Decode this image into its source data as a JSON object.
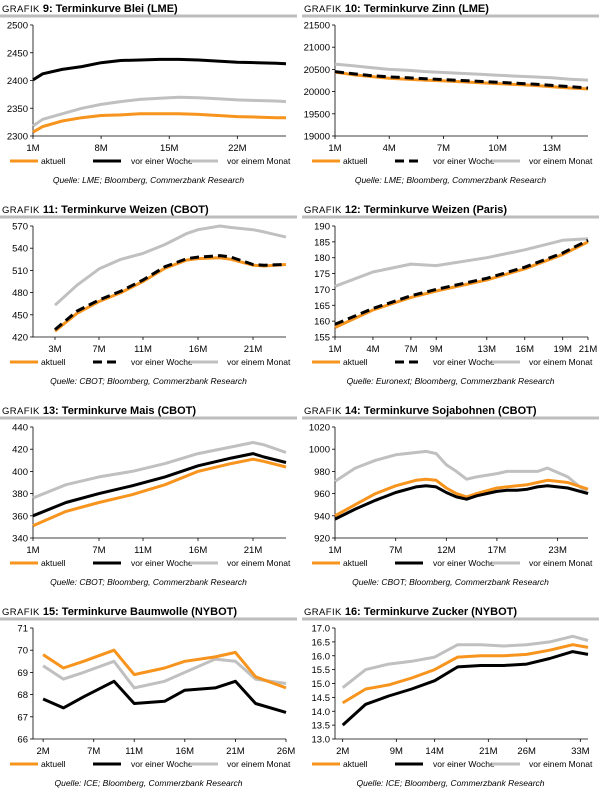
{
  "legend_labels": {
    "a": "aktuell",
    "w": "vor einer Woche",
    "m": "vor einem Monat"
  },
  "series_colors": {
    "a": "#F7941D",
    "w": "#000000",
    "m": "#C0C0C0"
  },
  "chart_data": [
    {
      "type": "line",
      "title_prefix": "Grafik",
      "title_num": "9:",
      "title_rest": " Terminkurve Blei (LME)",
      "source": "Quelle: LME; Bloomberg, Commerzbank Research",
      "ylim": [
        2300,
        2500
      ],
      "yticks": [
        2300,
        2350,
        2400,
        2450,
        2500
      ],
      "xmax": 27,
      "xticks": [
        {
          "x": 1,
          "label": "1M"
        },
        {
          "x": 8,
          "label": "8M"
        },
        {
          "x": 15,
          "label": "15M"
        },
        {
          "x": 22,
          "label": "22M"
        }
      ],
      "series": [
        {
          "key": "m",
          "x": [
            1,
            2,
            4,
            6,
            8,
            10,
            12,
            14,
            16,
            18,
            20,
            22,
            24,
            26,
            27
          ],
          "values": [
            2318,
            2330,
            2340,
            2350,
            2357,
            2362,
            2366,
            2368,
            2370,
            2369,
            2367,
            2365,
            2364,
            2363,
            2362
          ]
        },
        {
          "key": "a",
          "x": [
            1,
            2,
            4,
            6,
            8,
            10,
            12,
            14,
            16,
            18,
            20,
            22,
            24,
            26,
            27
          ],
          "values": [
            2307,
            2317,
            2327,
            2333,
            2337,
            2338,
            2340,
            2340,
            2340,
            2339,
            2337,
            2335,
            2334,
            2333,
            2333
          ]
        },
        {
          "key": "w",
          "x": [
            1,
            2,
            4,
            6,
            8,
            10,
            12,
            14,
            16,
            18,
            20,
            22,
            24,
            26,
            27
          ],
          "values": [
            2401,
            2412,
            2420,
            2425,
            2432,
            2436,
            2437,
            2438,
            2438,
            2437,
            2435,
            2433,
            2432,
            2431,
            2430
          ]
        }
      ]
    },
    {
      "type": "line",
      "title_prefix": "Grafik",
      "title_num": "10:",
      "title_rest": " Terminkurve Zinn (LME)",
      "source": "Quelle: LME; Bloomberg, Commerzbank Research",
      "ylim": [
        19000,
        21500
      ],
      "yticks": [
        19000,
        19500,
        20000,
        20500,
        21000,
        21500
      ],
      "xmax": 15,
      "xticks": [
        {
          "x": 1,
          "label": "1M"
        },
        {
          "x": 4,
          "label": "4M"
        },
        {
          "x": 7,
          "label": "7M"
        },
        {
          "x": 10,
          "label": "10M"
        },
        {
          "x": 13,
          "label": "13M"
        }
      ],
      "series": [
        {
          "key": "m",
          "x": [
            1,
            2,
            3,
            4,
            5,
            6,
            7,
            8,
            9,
            10,
            11,
            12,
            13,
            14,
            15
          ],
          "values": [
            20620,
            20580,
            20540,
            20500,
            20480,
            20450,
            20430,
            20410,
            20390,
            20370,
            20350,
            20330,
            20310,
            20280,
            20260
          ]
        },
        {
          "key": "a",
          "x": [
            1,
            2,
            3,
            4,
            5,
            6,
            7,
            8,
            9,
            10,
            11,
            12,
            13,
            14,
            15
          ],
          "values": [
            20440,
            20380,
            20340,
            20300,
            20280,
            20260,
            20240,
            20220,
            20200,
            20180,
            20160,
            20140,
            20110,
            20080,
            20060
          ]
        },
        {
          "key": "w",
          "x": [
            1,
            2,
            3,
            4,
            5,
            6,
            7,
            8,
            9,
            10,
            11,
            12,
            13,
            14,
            15
          ],
          "values": [
            20450,
            20400,
            20360,
            20330,
            20310,
            20290,
            20270,
            20250,
            20230,
            20210,
            20190,
            20170,
            20140,
            20110,
            20080
          ]
        }
      ]
    },
    {
      "type": "line",
      "title_prefix": "Grafik",
      "title_num": "11:",
      "title_rest": " Terminkurve Weizen (CBOT)",
      "source": "Quelle: CBOT; Bloomberg, Commerzbank Research",
      "ylim": [
        420,
        570
      ],
      "yticks": [
        420,
        450,
        480,
        510,
        540,
        570
      ],
      "xmax": 24,
      "xticks": [
        {
          "x": 3,
          "label": "3M"
        },
        {
          "x": 7,
          "label": "7M"
        },
        {
          "x": 11,
          "label": "11M"
        },
        {
          "x": 16,
          "label": "16M"
        },
        {
          "x": 21,
          "label": "21M"
        }
      ],
      "series": [
        {
          "key": "m",
          "x": [
            3,
            5,
            7,
            9,
            11,
            13,
            15,
            16,
            18,
            19,
            21,
            22,
            24
          ],
          "values": [
            463,
            490,
            512,
            525,
            533,
            545,
            560,
            565,
            570,
            568,
            565,
            562,
            555
          ]
        },
        {
          "key": "a",
          "x": [
            3,
            5,
            7,
            9,
            11,
            13,
            15,
            16,
            18,
            19,
            21,
            22,
            24
          ],
          "values": [
            428,
            452,
            468,
            480,
            495,
            513,
            524,
            526,
            527,
            525,
            517,
            516,
            518
          ]
        },
        {
          "key": "w",
          "x": [
            3,
            5,
            7,
            9,
            11,
            13,
            15,
            16,
            18,
            19,
            21,
            22,
            24
          ],
          "values": [
            430,
            455,
            470,
            482,
            497,
            515,
            526,
            528,
            530,
            528,
            518,
            517,
            518
          ]
        }
      ]
    },
    {
      "type": "line",
      "title_prefix": "Grafik",
      "title_num": "12:",
      "title_rest": " Terminkurve Weizen (Paris)",
      "source": "Quelle: Euronext; Bloomberg, Commerzbank Research",
      "ylim": [
        155,
        190
      ],
      "yticks": [
        155,
        160,
        165,
        170,
        175,
        180,
        185,
        190
      ],
      "xmax": 21,
      "xticks": [
        {
          "x": 1,
          "label": "1M"
        },
        {
          "x": 4,
          "label": "4M"
        },
        {
          "x": 7,
          "label": "7M"
        },
        {
          "x": 9,
          "label": "9M"
        },
        {
          "x": 13,
          "label": "13M"
        },
        {
          "x": 16,
          "label": "16M"
        },
        {
          "x": 19,
          "label": "19M"
        },
        {
          "x": 21,
          "label": "21M"
        }
      ],
      "series": [
        {
          "key": "m",
          "x": [
            1,
            4,
            7,
            9,
            13,
            16,
            19,
            21
          ],
          "values": [
            171,
            175.5,
            178,
            177.5,
            180,
            182.5,
            185.5,
            186
          ]
        },
        {
          "key": "a",
          "x": [
            1,
            4,
            7,
            9,
            13,
            16,
            19,
            21
          ],
          "values": [
            158,
            163.5,
            167.5,
            169.5,
            173,
            176.5,
            181,
            185
          ]
        },
        {
          "key": "w",
          "x": [
            1,
            4,
            7,
            9,
            13,
            16,
            19,
            21
          ],
          "values": [
            159,
            164,
            168,
            170,
            173.5,
            177,
            181.5,
            185.5
          ]
        }
      ]
    },
    {
      "type": "line",
      "title_prefix": "Grafik",
      "title_num": "13:",
      "title_rest": " Terminkurve Mais (CBOT)",
      "source": "Quelle: CBOT; Bloomberg, Commerzbank Research",
      "ylim": [
        340,
        440
      ],
      "yticks": [
        340,
        360,
        380,
        400,
        420,
        440
      ],
      "xmax": 24,
      "xticks": [
        {
          "x": 1,
          "label": "1M"
        },
        {
          "x": 7,
          "label": "7M"
        },
        {
          "x": 11,
          "label": "11M"
        },
        {
          "x": 16,
          "label": "16M"
        },
        {
          "x": 21,
          "label": "21M"
        }
      ],
      "series": [
        {
          "key": "m",
          "x": [
            1,
            4,
            7,
            10,
            13,
            16,
            19,
            21,
            22,
            24
          ],
          "values": [
            376,
            388,
            395,
            400,
            407,
            416,
            422,
            426,
            424,
            417
          ]
        },
        {
          "key": "w",
          "x": [
            1,
            4,
            7,
            10,
            13,
            16,
            19,
            21,
            22,
            24
          ],
          "values": [
            360,
            372,
            380,
            387,
            395,
            405,
            412,
            416,
            413,
            408
          ]
        },
        {
          "key": "a",
          "x": [
            1,
            4,
            7,
            10,
            13,
            16,
            19,
            21,
            22,
            24
          ],
          "values": [
            351,
            364,
            372,
            379,
            388,
            400,
            407,
            411,
            409,
            404
          ]
        }
      ]
    },
    {
      "type": "line",
      "title_prefix": "Grafik",
      "title_num": "14:",
      "title_rest": " Terminkurve Sojabohnen (CBOT)",
      "source": "Quelle: CBOT; Bloomberg, Commerzbank Research",
      "ylim": [
        920,
        1020
      ],
      "yticks": [
        920,
        940,
        960,
        980,
        1000,
        1020
      ],
      "xmax": 26,
      "xticks": [
        {
          "x": 1,
          "label": "1M"
        },
        {
          "x": 7,
          "label": "7M"
        },
        {
          "x": 12,
          "label": "12M"
        },
        {
          "x": 17,
          "label": "17M"
        },
        {
          "x": 23,
          "label": "23M"
        }
      ],
      "series": [
        {
          "key": "m",
          "x": [
            1,
            3,
            5,
            7,
            9,
            10,
            11,
            12,
            13,
            14,
            15,
            17,
            18,
            19,
            20,
            21,
            22,
            24,
            26
          ],
          "values": [
            971,
            983,
            990,
            995,
            997,
            998,
            996,
            986,
            980,
            973,
            975,
            978,
            980,
            980,
            980,
            980,
            983,
            975,
            960
          ]
        },
        {
          "key": "a",
          "x": [
            1,
            3,
            5,
            7,
            9,
            10,
            11,
            12,
            13,
            14,
            15,
            17,
            18,
            19,
            20,
            21,
            22,
            24,
            26
          ],
          "values": [
            940,
            950,
            960,
            967,
            972,
            973,
            972,
            965,
            960,
            957,
            960,
            965,
            966,
            967,
            968,
            970,
            972,
            970,
            964
          ]
        },
        {
          "key": "w",
          "x": [
            1,
            3,
            5,
            7,
            9,
            10,
            11,
            12,
            13,
            14,
            15,
            17,
            18,
            19,
            20,
            21,
            22,
            24,
            26
          ],
          "values": [
            937,
            946,
            954,
            961,
            966,
            967,
            966,
            961,
            957,
            955,
            958,
            962,
            963,
            963,
            964,
            966,
            967,
            965,
            960
          ]
        }
      ]
    },
    {
      "type": "line",
      "title_prefix": "Grafik",
      "title_num": "15:",
      "title_rest": " Terminkurve Baumwolle (NYBOT)",
      "source": "Quelle: ICE; Bloomberg, Commerzbank Research",
      "ylim": [
        66,
        71
      ],
      "yticks": [
        66,
        67,
        68,
        69,
        70,
        71
      ],
      "xmax": 26,
      "xticks": [
        {
          "x": 2,
          "label": "2M"
        },
        {
          "x": 7,
          "label": "7M"
        },
        {
          "x": 11,
          "label": "11M"
        },
        {
          "x": 16,
          "label": "16M"
        },
        {
          "x": 21,
          "label": "21M"
        },
        {
          "x": 26,
          "label": "26M"
        }
      ],
      "series": [
        {
          "key": "m",
          "x": [
            2,
            4,
            6,
            9,
            11,
            14,
            16,
            19,
            21,
            23,
            26
          ],
          "values": [
            69.3,
            68.7,
            69,
            69.5,
            68.3,
            68.6,
            69,
            69.6,
            69.5,
            68.7,
            68.5
          ]
        },
        {
          "key": "a",
          "x": [
            2,
            4,
            6,
            9,
            11,
            14,
            16,
            19,
            21,
            23,
            26
          ],
          "values": [
            69.8,
            69.2,
            69.5,
            70,
            68.9,
            69.2,
            69.5,
            69.7,
            69.9,
            68.8,
            68.3
          ]
        },
        {
          "key": "w",
          "x": [
            2,
            4,
            6,
            9,
            11,
            14,
            16,
            19,
            21,
            23,
            26
          ],
          "values": [
            67.8,
            67.4,
            67.9,
            68.6,
            67.6,
            67.7,
            68.2,
            68.3,
            68.6,
            67.6,
            67.2
          ]
        }
      ]
    },
    {
      "type": "line",
      "title_prefix": "Grafik",
      "title_num": "16:",
      "title_rest": " Terminkurve Zucker (NYBOT)",
      "source": "Quelle: ICE; Bloomberg, Commerzbank Research",
      "ylim": [
        13,
        17
      ],
      "yticks": [
        13,
        13.5,
        14,
        14.5,
        15,
        15.5,
        16,
        16.5,
        17
      ],
      "ytick_labels": [
        "13.0",
        "13.5",
        "14.0",
        "14.5",
        "15.0",
        "15.5",
        "16.0",
        "16.5",
        "17.0"
      ],
      "xmax": 34,
      "xticks": [
        {
          "x": 2,
          "label": "2M"
        },
        {
          "x": 9,
          "label": "9M"
        },
        {
          "x": 14,
          "label": "14M"
        },
        {
          "x": 21,
          "label": "21M"
        },
        {
          "x": 26,
          "label": "26M"
        },
        {
          "x": 33,
          "label": "33M"
        }
      ],
      "series": [
        {
          "key": "m",
          "x": [
            2,
            5,
            8,
            11,
            14,
            17,
            20,
            23,
            26,
            29,
            32,
            34
          ],
          "values": [
            14.85,
            15.5,
            15.7,
            15.8,
            15.95,
            16.4,
            16.4,
            16.35,
            16.4,
            16.5,
            16.7,
            16.55
          ]
        },
        {
          "key": "a",
          "x": [
            2,
            5,
            8,
            11,
            14,
            17,
            20,
            23,
            26,
            29,
            32,
            34
          ],
          "values": [
            14.3,
            14.8,
            14.95,
            15.2,
            15.5,
            15.95,
            16.0,
            16.0,
            16.05,
            16.2,
            16.4,
            16.3
          ]
        },
        {
          "key": "w",
          "x": [
            2,
            5,
            8,
            11,
            14,
            17,
            20,
            23,
            26,
            29,
            32,
            34
          ],
          "values": [
            13.5,
            14.25,
            14.55,
            14.8,
            15.1,
            15.6,
            15.65,
            15.65,
            15.7,
            15.9,
            16.15,
            16.05
          ]
        }
      ]
    }
  ]
}
